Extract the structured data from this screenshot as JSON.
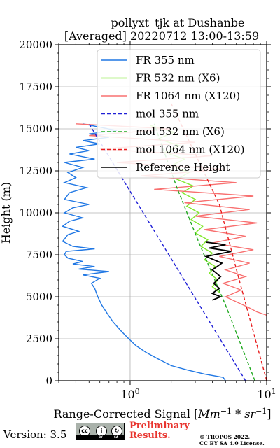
{
  "chart_data": {
    "type": "line",
    "title": [
      "pollyxt_tjk at Dushanbe",
      "[Averaged] 20220712 13:00-13:59"
    ],
    "xlabel": "Range-Corrected Signal [",
    "xlabel_unit": "Mm",
    "xlabel_exp1": "−1",
    "xlabel_mid": " * sr",
    "xlabel_exp2": "−1",
    "xlabel_end": "]",
    "ylabel": "Height (m)",
    "xscale": "log",
    "xlim": [
      0.3,
      10
    ],
    "ylim": [
      0,
      20000
    ],
    "yticks": [
      0,
      2500,
      5000,
      7500,
      10000,
      12500,
      15000,
      17500,
      20000
    ],
    "xtick_labels": [
      {
        "value": 1,
        "base": "10",
        "exp": "0"
      },
      {
        "value": 10,
        "base": "10",
        "exp": "1"
      }
    ],
    "grid": true,
    "legend_position": "top-right",
    "series": [
      {
        "name": "FR 355 nm",
        "color": "#1f77e4",
        "style": "solid",
        "points": [
          [
            5.0,
            0
          ],
          [
            4.8,
            200
          ],
          [
            3.5,
            400
          ],
          [
            2.6,
            650
          ],
          [
            2.0,
            900
          ],
          [
            1.6,
            1300
          ],
          [
            1.3,
            1700
          ],
          [
            1.1,
            2100
          ],
          [
            0.95,
            2600
          ],
          [
            0.85,
            3000
          ],
          [
            0.75,
            3500
          ],
          [
            0.68,
            4000
          ],
          [
            0.62,
            4500
          ],
          [
            0.58,
            5000
          ],
          [
            0.55,
            5500
          ],
          [
            0.52,
            5800
          ],
          [
            0.6,
            6100
          ],
          [
            0.45,
            6300
          ],
          [
            0.7,
            6500
          ],
          [
            0.42,
            6650
          ],
          [
            0.55,
            6800
          ],
          [
            0.38,
            6950
          ],
          [
            0.45,
            7100
          ],
          [
            0.35,
            7300
          ],
          [
            0.33,
            7500
          ],
          [
            0.34,
            7700
          ],
          [
            0.55,
            7850
          ],
          [
            0.38,
            8000
          ],
          [
            0.32,
            8300
          ],
          [
            0.35,
            8700
          ],
          [
            0.42,
            8900
          ],
          [
            0.32,
            9200
          ],
          [
            0.36,
            9500
          ],
          [
            0.45,
            9700
          ],
          [
            0.33,
            10000
          ],
          [
            0.38,
            10300
          ],
          [
            0.5,
            10500
          ],
          [
            0.33,
            10800
          ],
          [
            0.36,
            11200
          ],
          [
            0.48,
            11500
          ],
          [
            0.33,
            11800
          ],
          [
            0.4,
            12100
          ],
          [
            0.35,
            12400
          ],
          [
            0.45,
            12700
          ],
          [
            0.33,
            13000
          ],
          [
            0.55,
            13200
          ],
          [
            0.36,
            13500
          ],
          [
            0.5,
            13700
          ],
          [
            0.4,
            13900
          ],
          [
            0.6,
            14100
          ],
          [
            0.45,
            14300
          ],
          [
            0.7,
            14500
          ],
          [
            0.5,
            14700
          ],
          [
            0.8,
            14900
          ],
          [
            0.6,
            15100
          ],
          [
            0.45,
            15300
          ]
        ]
      },
      {
        "name": "FR 532 nm (X6)",
        "color": "#7fe82a",
        "style": "solid",
        "points": [
          [
            4.6,
            5200
          ],
          [
            4.0,
            5600
          ],
          [
            4.4,
            6000
          ],
          [
            3.8,
            6400
          ],
          [
            4.2,
            6800
          ],
          [
            3.5,
            7200
          ],
          [
            4.0,
            7600
          ],
          [
            3.3,
            8000
          ],
          [
            3.7,
            8400
          ],
          [
            3.0,
            8800
          ],
          [
            3.4,
            9200
          ],
          [
            2.8,
            9600
          ],
          [
            3.2,
            10000
          ],
          [
            2.6,
            10400
          ],
          [
            3.0,
            10800
          ],
          [
            2.4,
            11200
          ],
          [
            2.9,
            11600
          ],
          [
            2.2,
            12000
          ],
          [
            2.7,
            12400
          ],
          [
            2.0,
            12800
          ],
          [
            2.5,
            13200
          ],
          [
            1.8,
            13600
          ],
          [
            2.3,
            14000
          ],
          [
            1.6,
            14400
          ],
          [
            2.1,
            14800
          ],
          [
            1.4,
            15200
          ]
        ]
      },
      {
        "name": "FR 1064 nm (X120)",
        "color": "#f87070",
        "style": "solid",
        "points": [
          [
            10,
            3900
          ],
          [
            8.5,
            4100
          ],
          [
            7.2,
            4400
          ],
          [
            6.0,
            4700
          ],
          [
            5.0,
            5000
          ],
          [
            6.5,
            5400
          ],
          [
            4.8,
            5800
          ],
          [
            7.0,
            6200
          ],
          [
            5.0,
            6600
          ],
          [
            7.5,
            7000
          ],
          [
            4.5,
            7400
          ],
          [
            8.0,
            7800
          ],
          [
            4.0,
            8200
          ],
          [
            7.0,
            8600
          ],
          [
            3.5,
            9000
          ],
          [
            8.5,
            9400
          ],
          [
            3.0,
            9800
          ],
          [
            7.5,
            10200
          ],
          [
            2.5,
            10600
          ],
          [
            8.0,
            11000
          ],
          [
            1.5,
            11400
          ],
          [
            6.0,
            11800
          ],
          [
            1.2,
            12200
          ],
          [
            5.0,
            12600
          ],
          [
            0.8,
            13000
          ],
          [
            4.0,
            13400
          ],
          [
            0.6,
            13800
          ],
          [
            3.0,
            14200
          ],
          [
            0.5,
            14600
          ],
          [
            2.0,
            15000
          ],
          [
            0.4,
            15300
          ]
        ]
      },
      {
        "name": "mol 355 nm",
        "color": "#1f1fd6",
        "style": "dashed",
        "points": [
          [
            7.0,
            0
          ],
          [
            0.5,
            15300
          ]
        ]
      },
      {
        "name": "mol 532 nm (X6)",
        "color": "#22aa22",
        "style": "dashed",
        "points": [
          [
            8.2,
            0
          ],
          [
            5.0,
            4500
          ],
          [
            3.2,
            8200
          ],
          [
            2.2,
            11500
          ],
          [
            1.5,
            15300
          ]
        ]
      },
      {
        "name": "mol 1064 nm (X120)",
        "color": "#e81c1c",
        "style": "dashed",
        "points": [
          [
            10,
            0
          ],
          [
            6.2,
            6200
          ],
          [
            4.5,
            10500
          ],
          [
            2.0,
            16500
          ]
        ]
      },
      {
        "name": "Reference Height",
        "color": "#000000",
        "style": "solid",
        "points": [
          [
            4.0,
            4800
          ],
          [
            4.6,
            5000
          ],
          [
            4.0,
            5200
          ],
          [
            4.5,
            5500
          ],
          [
            4.1,
            5800
          ],
          [
            4.6,
            6200
          ],
          [
            4.0,
            6600
          ],
          [
            4.7,
            7000
          ],
          [
            3.6,
            7400
          ],
          [
            5.5,
            7700
          ],
          [
            3.8,
            7900
          ],
          [
            5.0,
            8100
          ],
          [
            3.6,
            8250
          ]
        ]
      }
    ]
  },
  "footer": {
    "version": "Version: 3.5",
    "cc_by": "BY",
    "cc_sa": "SA",
    "prelim_line1": "Preliminary",
    "prelim_line2": "Results.",
    "license_line1": "© TROPOS 2022.",
    "license_line2": "CC BY SA 4.0 License."
  },
  "colors": {
    "accent_red": "#e8342e",
    "badge_gray": "#aab2ab"
  }
}
